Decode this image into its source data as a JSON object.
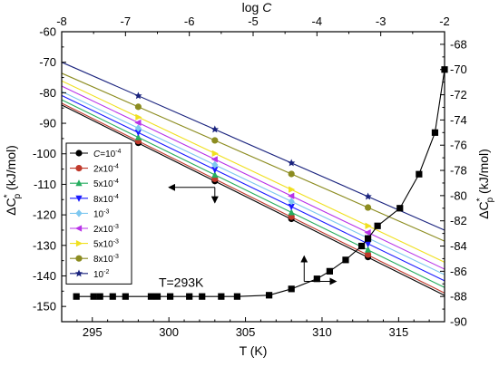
{
  "chart_data": {
    "type": "line",
    "title": "",
    "axes": {
      "bottom": {
        "label": "T (K)",
        "range": [
          293,
          318
        ],
        "ticks": [
          295,
          300,
          305,
          310,
          315
        ],
        "tick_labels": [
          "295",
          "300",
          "305",
          "310",
          "315"
        ]
      },
      "top": {
        "label": "log C",
        "range": [
          -8,
          -2
        ],
        "ticks": [
          -8,
          -7,
          -6,
          -5,
          -4,
          -3,
          -2
        ],
        "tick_labels": [
          "-8",
          "-7",
          "-6",
          "-5",
          "-4",
          "-3",
          "-2"
        ]
      },
      "left": {
        "label": "ΔC*p (kJ/mol)",
        "range": [
          -155,
          -60
        ],
        "ticks": [
          -150,
          -140,
          -130,
          -120,
          -110,
          -100,
          -90,
          -80,
          -70,
          -60
        ],
        "tick_labels": [
          "-150",
          "-140",
          "-130",
          "-120",
          "-110",
          "-100",
          "-90",
          "-80",
          "-70",
          "-60"
        ]
      },
      "right": {
        "label": "ΔC*p (kJ/mol)",
        "range": [
          -90,
          -67
        ],
        "ticks": [
          -90,
          -88,
          -86,
          -84,
          -82,
          -80,
          -78,
          -76,
          -74,
          -72,
          -70,
          -68
        ],
        "tick_labels": [
          "-90",
          "-88",
          "-86",
          "-84",
          "-82",
          "-80",
          "-78",
          "-76",
          "-74",
          "-72",
          "-70",
          "-68"
        ]
      }
    },
    "grid": false,
    "legend_position": "left-middle",
    "legend": [
      {
        "label_main": "C=10",
        "label_sup": "-4",
        "color": "#000000",
        "marker": "circle"
      },
      {
        "label_main": "2x10",
        "label_sup": "-4",
        "color": "#c0392b",
        "marker": "circle"
      },
      {
        "label_main": "5x10",
        "label_sup": "-4",
        "color": "#27ae60",
        "marker": "triangle-up"
      },
      {
        "label_main": "8x10",
        "label_sup": "-4",
        "color": "#1a1aff",
        "marker": "triangle-down"
      },
      {
        "label_main": "10",
        "label_sup": "-3",
        "color": "#7ec8f0",
        "marker": "diamond"
      },
      {
        "label_main": "2x10",
        "label_sup": "-3",
        "color": "#b833e8",
        "marker": "triangle-left"
      },
      {
        "label_main": "5x10",
        "label_sup": "-3",
        "color": "#f0e020",
        "marker": "triangle-right"
      },
      {
        "label_main": "8x10",
        "label_sup": "-3",
        "color": "#8c8c20",
        "marker": "circle"
      },
      {
        "label_main": "10",
        "label_sup": "-2",
        "color": "#1a237e",
        "marker": "star"
      }
    ],
    "temperature_series": [
      {
        "name": "C=10^-4",
        "color": "#000000",
        "marker": "circle",
        "x": [
          298,
          303,
          308,
          313
        ],
        "y": [
          -96.4,
          -108.9,
          -121.3,
          -133.8
        ],
        "line_x": [
          293,
          318
        ],
        "line_y": [
          -84.0,
          -146.4
        ]
      },
      {
        "name": "2x10^-4",
        "color": "#c0392b",
        "marker": "circle",
        "x": [
          298,
          303,
          308,
          313
        ],
        "y": [
          -95.8,
          -108.2,
          -120.6,
          -133.0
        ],
        "line_x": [
          293,
          318
        ],
        "line_y": [
          -83.4,
          -145.6
        ]
      },
      {
        "name": "5x10^-4",
        "color": "#27ae60",
        "marker": "triangle-up",
        "x": [
          298,
          303,
          308,
          313
        ],
        "y": [
          -94.6,
          -106.9,
          -119.2,
          -131.4
        ],
        "line_x": [
          293,
          318
        ],
        "line_y": [
          -82.3,
          -143.8
        ]
      },
      {
        "name": "8x10^-4",
        "color": "#1a1aff",
        "marker": "triangle-down",
        "x": [
          298,
          303,
          308,
          313
        ],
        "y": [
          -93.0,
          -105.2,
          -117.3,
          -129.5
        ],
        "line_x": [
          293,
          318
        ],
        "line_y": [
          -80.9,
          -141.6
        ]
      },
      {
        "name": "10^-3",
        "color": "#7ec8f0",
        "marker": "diamond",
        "x": [
          298,
          303,
          308,
          313
        ],
        "y": [
          -91.6,
          -103.6,
          -115.6,
          -127.6
        ],
        "line_x": [
          293,
          318
        ],
        "line_y": [
          -79.6,
          -139.6
        ]
      },
      {
        "name": "2x10^-3",
        "color": "#b833e8",
        "marker": "triangle-left",
        "x": [
          298,
          303,
          308,
          313
        ],
        "y": [
          -89.8,
          -101.8,
          -113.8,
          -125.8
        ],
        "line_x": [
          293,
          318
        ],
        "line_y": [
          -77.8,
          -137.8
        ]
      },
      {
        "name": "5x10^-3",
        "color": "#f0e020",
        "marker": "triangle-right",
        "x": [
          298,
          303,
          308,
          313
        ],
        "y": [
          -88.0,
          -99.9,
          -111.7,
          -123.6
        ],
        "line_x": [
          293,
          318
        ],
        "line_y": [
          -76.1,
          -135.5
        ]
      },
      {
        "name": "8x10^-3",
        "color": "#8c8c20",
        "marker": "circle",
        "x": [
          298,
          303,
          308,
          313
        ],
        "y": [
          -84.6,
          -95.6,
          -106.6,
          -117.6
        ],
        "line_x": [
          293,
          318
        ],
        "line_y": [
          -73.6,
          -128.6
        ]
      },
      {
        "name": "10^-2",
        "color": "#1a237e",
        "marker": "star",
        "x": [
          298,
          303,
          308,
          313
        ],
        "y": [
          -81.0,
          -92.0,
          -103.0,
          -114.0
        ],
        "line_x": [
          293,
          318
        ],
        "line_y": [
          -70.0,
          -125.0
        ]
      }
    ],
    "concentration_series": {
      "name": "T=293K",
      "color": "#000000",
      "marker": "square",
      "x_axis": "top",
      "y_axis": "right",
      "logC": [
        -7.77,
        -7.5,
        -7.4,
        -7.2,
        -7.0,
        -6.6,
        -6.5,
        -6.3,
        -6.0,
        -5.8,
        -5.5,
        -5.25,
        -4.75,
        -4.4,
        -4.0,
        -3.8,
        -3.55,
        -3.3,
        -3.2,
        -3.05,
        -2.7,
        -2.4,
        -2.15,
        -2.0
      ],
      "dCp": [
        -88.0,
        -88.0,
        -88.0,
        -88.0,
        -88.0,
        -88.0,
        -88.0,
        -88.0,
        -88.0,
        -88.0,
        -88.0,
        -88.0,
        -87.9,
        -87.4,
        -86.6,
        -86.0,
        -85.1,
        -84.0,
        -83.4,
        -82.4,
        -81.0,
        -78.3,
        -75.0,
        -70.0
      ]
    },
    "annotations": [
      {
        "text": "T=293K",
        "x": 300.8,
        "y": -143.5
      }
    ],
    "arrows": [
      {
        "from": [
          303,
          -111
        ],
        "to": [
          300,
          -111
        ],
        "axis": "left"
      },
      {
        "from": [
          303,
          -111
        ],
        "to": [
          303,
          -116
        ],
        "axis": "left"
      },
      {
        "from": [
          -4.2,
          -86.8
        ],
        "to": [
          -4.2,
          -84.8
        ],
        "axis": "right"
      },
      {
        "from": [
          -4.2,
          -86.8
        ],
        "to": [
          -3.7,
          -86.8
        ],
        "axis": "right"
      }
    ]
  }
}
